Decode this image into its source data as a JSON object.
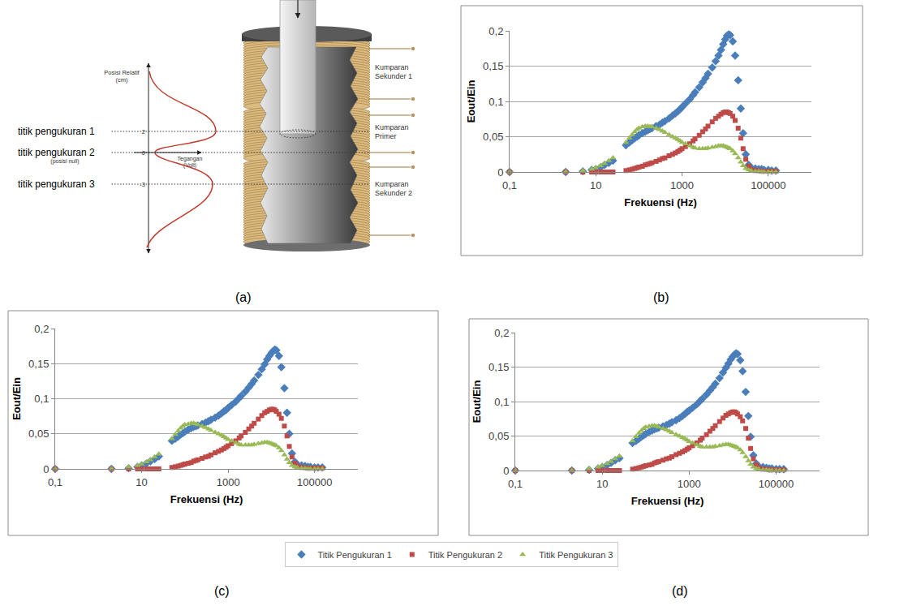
{
  "panel_labels": [
    "(a)",
    "(b)",
    "(c)",
    "(d)"
  ],
  "diagram": {
    "axis_title": "Posisi Relatif (cm)",
    "voltage_axis_title": "Tegangan (Volt)",
    "ticks": [
      2,
      0,
      -3
    ],
    "points": [
      {
        "label": "titik pengukuran 1",
        "position": 2
      },
      {
        "label": "titik pengukuran 2",
        "note": "(posisi null)",
        "position": 0
      },
      {
        "label": "titik pengukuran 3",
        "position": -3
      }
    ],
    "coils": [
      "Kumparan Sekunder 1",
      "Kumparan Primer",
      "Kumparan Sekunder 2"
    ]
  },
  "chart_data": [
    {
      "type": "scatter",
      "log": "x",
      "grid": true,
      "legend": "bottom",
      "x_label": "Frekuensi (Hz)",
      "y_label": "Eout/Ein",
      "xlim": [
        0.1,
        1000000
      ],
      "xticks": [
        {
          "value": 0.1,
          "label": "0,1"
        },
        10,
        1000,
        100000
      ],
      "ylim": [
        0,
        0.2
      ],
      "yticks": [
        0,
        {
          "value": 0.05,
          "label": "0,05"
        },
        {
          "value": 0.1,
          "label": "0,1"
        },
        {
          "value": 0.15,
          "label": "0,15"
        },
        {
          "value": 0.2,
          "label": "0,2"
        }
      ],
      "x": [
        0.1,
        2,
        5,
        8,
        10,
        13,
        16,
        20,
        25,
        50,
        60,
        70,
        80,
        90,
        100,
        120,
        140,
        160,
        180,
        200,
        250,
        300,
        350,
        400,
        500,
        600,
        700,
        800,
        900,
        1000,
        1200,
        1500,
        1800,
        2000,
        2500,
        3000,
        3500,
        4000,
        5000,
        6000,
        7000,
        8000,
        9000,
        10000,
        11000,
        12000,
        13000,
        15000,
        17000,
        20000,
        23000,
        26000,
        30000,
        35000,
        40000,
        50000,
        60000,
        70000,
        80000,
        100000,
        120000,
        150000
      ],
      "series": [
        {
          "name": "Titik Pengukuran 1",
          "color": "#4a7ebb",
          "marker": "diamond",
          "values": [
            0,
            0,
            0.001,
            0.003,
            0.004,
            0.007,
            0.01,
            0.013,
            0.016,
            0.038,
            0.042,
            0.045,
            0.048,
            0.05,
            0.052,
            0.055,
            0.057,
            0.059,
            0.061,
            0.062,
            0.065,
            0.067,
            0.07,
            0.072,
            0.076,
            0.08,
            0.083,
            0.086,
            0.089,
            0.092,
            0.097,
            0.103,
            0.109,
            0.113,
            0.12,
            0.127,
            0.133,
            0.139,
            0.148,
            0.157,
            0.165,
            0.173,
            0.181,
            0.188,
            0.193,
            0.195,
            0.194,
            0.185,
            0.165,
            0.13,
            0.09,
            0.055,
            0.025,
            0.01,
            0.006,
            0.005,
            0.004,
            0.004,
            0.003,
            0.003,
            0.002,
            0.002
          ]
        },
        {
          "name": "Titik Pengukuran 2",
          "color": "#be4b48",
          "marker": "square",
          "values": [
            0,
            0,
            0,
            0,
            0,
            0,
            0,
            0,
            0,
            0.002,
            0.003,
            0.004,
            0.005,
            0.006,
            0.007,
            0.008,
            0.01,
            0.011,
            0.012,
            0.013,
            0.015,
            0.017,
            0.019,
            0.02,
            0.023,
            0.025,
            0.027,
            0.029,
            0.031,
            0.033,
            0.036,
            0.04,
            0.044,
            0.047,
            0.052,
            0.057,
            0.061,
            0.065,
            0.071,
            0.076,
            0.079,
            0.082,
            0.084,
            0.085,
            0.085,
            0.084,
            0.083,
            0.079,
            0.073,
            0.062,
            0.048,
            0.033,
            0.018,
            0.008,
            0.004,
            0.002,
            0.002,
            0.001,
            0.001,
            0.001,
            0.001,
            0.001
          ]
        },
        {
          "name": "Titik Pengukuran 3",
          "color": "#98b954",
          "marker": "triangle-up",
          "values": [
            0,
            0,
            0.002,
            0.004,
            0.006,
            0.009,
            0.012,
            0.016,
            0.02,
            0.042,
            0.048,
            0.053,
            0.057,
            0.06,
            0.062,
            0.064,
            0.065,
            0.065,
            0.064,
            0.064,
            0.062,
            0.06,
            0.058,
            0.056,
            0.053,
            0.05,
            0.048,
            0.046,
            0.044,
            0.042,
            0.04,
            0.037,
            0.035,
            0.034,
            0.033,
            0.033,
            0.033,
            0.034,
            0.035,
            0.036,
            0.037,
            0.037,
            0.037,
            0.036,
            0.035,
            0.034,
            0.033,
            0.03,
            0.026,
            0.02,
            0.014,
            0.009,
            0.005,
            0.003,
            0.002,
            0.001,
            0.001,
            0,
            0,
            0,
            0,
            0
          ]
        }
      ]
    },
    {
      "type": "scatter",
      "log": "x",
      "grid": true,
      "x_label": "Frekuensi (Hz)",
      "y_label": "Eout/Ein",
      "xlim": [
        0.1,
        1000000
      ],
      "xticks": [
        {
          "value": 0.1,
          "label": "0,1"
        },
        10,
        1000,
        100000
      ],
      "ylim": [
        0,
        0.2
      ],
      "yticks": [
        0,
        {
          "value": 0.05,
          "label": "0,05"
        },
        {
          "value": 0.1,
          "label": "0,1"
        },
        {
          "value": 0.15,
          "label": "0,15"
        },
        {
          "value": 0.2,
          "label": "0,2"
        }
      ],
      "x": [
        0.1,
        2,
        5,
        8,
        10,
        13,
        16,
        20,
        25,
        50,
        60,
        70,
        80,
        90,
        100,
        120,
        140,
        160,
        180,
        200,
        250,
        300,
        350,
        400,
        500,
        600,
        700,
        800,
        900,
        1000,
        1200,
        1500,
        1800,
        2000,
        2500,
        3000,
        3500,
        4000,
        5000,
        6000,
        7000,
        8000,
        9000,
        10000,
        11000,
        12000,
        13000,
        15000,
        17000,
        20000,
        23000,
        26000,
        30000,
        35000,
        40000,
        50000,
        60000,
        70000,
        80000,
        100000,
        120000,
        150000
      ],
      "series": [
        {
          "name": "Titik Pengukuran 1",
          "color": "#4a7ebb",
          "marker": "diamond",
          "values": [
            0,
            0,
            0.001,
            0.003,
            0.005,
            0.008,
            0.011,
            0.014,
            0.018,
            0.04,
            0.043,
            0.046,
            0.049,
            0.051,
            0.053,
            0.056,
            0.058,
            0.06,
            0.061,
            0.062,
            0.064,
            0.066,
            0.068,
            0.07,
            0.073,
            0.076,
            0.079,
            0.082,
            0.084,
            0.087,
            0.091,
            0.096,
            0.101,
            0.104,
            0.11,
            0.116,
            0.121,
            0.126,
            0.134,
            0.142,
            0.149,
            0.156,
            0.161,
            0.165,
            0.168,
            0.17,
            0.169,
            0.161,
            0.145,
            0.115,
            0.08,
            0.05,
            0.022,
            0.01,
            0.006,
            0.005,
            0.004,
            0.003,
            0.003,
            0.002,
            0.002,
            0.002
          ]
        },
        {
          "name": "Titik Pengukuran 2",
          "color": "#be4b48",
          "marker": "square",
          "values": [
            0,
            0,
            0,
            0,
            0,
            0,
            0,
            0,
            0,
            0.002,
            0.003,
            0.004,
            0.005,
            0.006,
            0.007,
            0.008,
            0.009,
            0.011,
            0.012,
            0.013,
            0.015,
            0.017,
            0.018,
            0.02,
            0.023,
            0.025,
            0.027,
            0.029,
            0.031,
            0.033,
            0.036,
            0.04,
            0.044,
            0.047,
            0.052,
            0.057,
            0.061,
            0.065,
            0.071,
            0.076,
            0.08,
            0.082,
            0.084,
            0.085,
            0.085,
            0.084,
            0.082,
            0.078,
            0.072,
            0.061,
            0.047,
            0.032,
            0.017,
            0.008,
            0.004,
            0.002,
            0.002,
            0.001,
            0.001,
            0.001,
            0.001,
            0.001
          ]
        },
        {
          "name": "Titik Pengukuran 3",
          "color": "#98b954",
          "marker": "triangle-up",
          "values": [
            0,
            0,
            0.003,
            0.005,
            0.007,
            0.01,
            0.013,
            0.017,
            0.021,
            0.043,
            0.049,
            0.054,
            0.058,
            0.061,
            0.063,
            0.064,
            0.065,
            0.065,
            0.064,
            0.063,
            0.061,
            0.059,
            0.057,
            0.055,
            0.052,
            0.05,
            0.048,
            0.046,
            0.044,
            0.042,
            0.04,
            0.037,
            0.035,
            0.034,
            0.034,
            0.034,
            0.034,
            0.035,
            0.036,
            0.037,
            0.038,
            0.038,
            0.037,
            0.036,
            0.035,
            0.034,
            0.033,
            0.03,
            0.026,
            0.02,
            0.014,
            0.009,
            0.005,
            0.003,
            0.002,
            0.001,
            0.001,
            0,
            0,
            0,
            0,
            0
          ]
        }
      ]
    },
    {
      "type": "scatter",
      "log": "x",
      "grid": true,
      "x_label": "Frekuensi (Hz)",
      "y_label": "Eout/Ein",
      "xlim": [
        0.1,
        1000000
      ],
      "xticks": [
        {
          "value": 0.1,
          "label": "0,1"
        },
        10,
        1000,
        100000
      ],
      "ylim": [
        0,
        0.2
      ],
      "yticks": [
        0,
        {
          "value": 0.05,
          "label": "0,05"
        },
        {
          "value": 0.1,
          "label": "0,1"
        },
        {
          "value": 0.15,
          "label": "0,15"
        },
        {
          "value": 0.2,
          "label": "0,2"
        }
      ],
      "x": [
        0.1,
        2,
        5,
        8,
        10,
        13,
        16,
        20,
        25,
        50,
        60,
        70,
        80,
        90,
        100,
        120,
        140,
        160,
        180,
        200,
        250,
        300,
        350,
        400,
        500,
        600,
        700,
        800,
        900,
        1000,
        1200,
        1500,
        1800,
        2000,
        2500,
        3000,
        3500,
        4000,
        5000,
        6000,
        7000,
        8000,
        9000,
        10000,
        11000,
        12000,
        13000,
        15000,
        17000,
        20000,
        23000,
        26000,
        30000,
        35000,
        40000,
        50000,
        60000,
        70000,
        80000,
        100000,
        120000,
        150000
      ],
      "series": [
        {
          "name": "Titik Pengukuran 1",
          "color": "#4a7ebb",
          "marker": "diamond",
          "values": [
            0,
            0,
            0.001,
            0.003,
            0.005,
            0.008,
            0.011,
            0.015,
            0.018,
            0.04,
            0.043,
            0.046,
            0.049,
            0.051,
            0.053,
            0.056,
            0.058,
            0.06,
            0.061,
            0.062,
            0.064,
            0.066,
            0.068,
            0.07,
            0.073,
            0.076,
            0.079,
            0.082,
            0.085,
            0.087,
            0.091,
            0.096,
            0.101,
            0.104,
            0.11,
            0.116,
            0.121,
            0.126,
            0.134,
            0.142,
            0.149,
            0.155,
            0.161,
            0.165,
            0.168,
            0.17,
            0.169,
            0.16,
            0.144,
            0.114,
            0.079,
            0.049,
            0.022,
            0.01,
            0.006,
            0.005,
            0.004,
            0.003,
            0.003,
            0.002,
            0.002,
            0.002
          ]
        },
        {
          "name": "Titik Pengukuran 2",
          "color": "#be4b48",
          "marker": "square",
          "values": [
            0,
            0,
            0,
            0,
            0,
            0,
            0,
            0,
            0,
            0.002,
            0.003,
            0.004,
            0.005,
            0.006,
            0.007,
            0.008,
            0.009,
            0.011,
            0.012,
            0.013,
            0.015,
            0.017,
            0.018,
            0.02,
            0.023,
            0.025,
            0.027,
            0.029,
            0.031,
            0.033,
            0.036,
            0.04,
            0.044,
            0.047,
            0.052,
            0.057,
            0.061,
            0.065,
            0.071,
            0.076,
            0.08,
            0.082,
            0.084,
            0.085,
            0.085,
            0.084,
            0.082,
            0.078,
            0.072,
            0.061,
            0.047,
            0.032,
            0.017,
            0.008,
            0.004,
            0.002,
            0.002,
            0.001,
            0.001,
            0.001,
            0.001,
            0.001
          ]
        },
        {
          "name": "Titik Pengukuran 3",
          "color": "#98b954",
          "marker": "triangle-up",
          "values": [
            0,
            0,
            0.003,
            0.005,
            0.007,
            0.01,
            0.013,
            0.017,
            0.021,
            0.043,
            0.049,
            0.054,
            0.058,
            0.061,
            0.063,
            0.064,
            0.065,
            0.065,
            0.064,
            0.063,
            0.061,
            0.059,
            0.057,
            0.055,
            0.052,
            0.05,
            0.048,
            0.046,
            0.044,
            0.042,
            0.04,
            0.037,
            0.035,
            0.034,
            0.034,
            0.034,
            0.034,
            0.035,
            0.036,
            0.037,
            0.038,
            0.038,
            0.037,
            0.036,
            0.035,
            0.034,
            0.033,
            0.03,
            0.026,
            0.02,
            0.014,
            0.009,
            0.005,
            0.003,
            0.002,
            0.001,
            0.001,
            0,
            0,
            0,
            0,
            0
          ]
        }
      ]
    }
  ]
}
